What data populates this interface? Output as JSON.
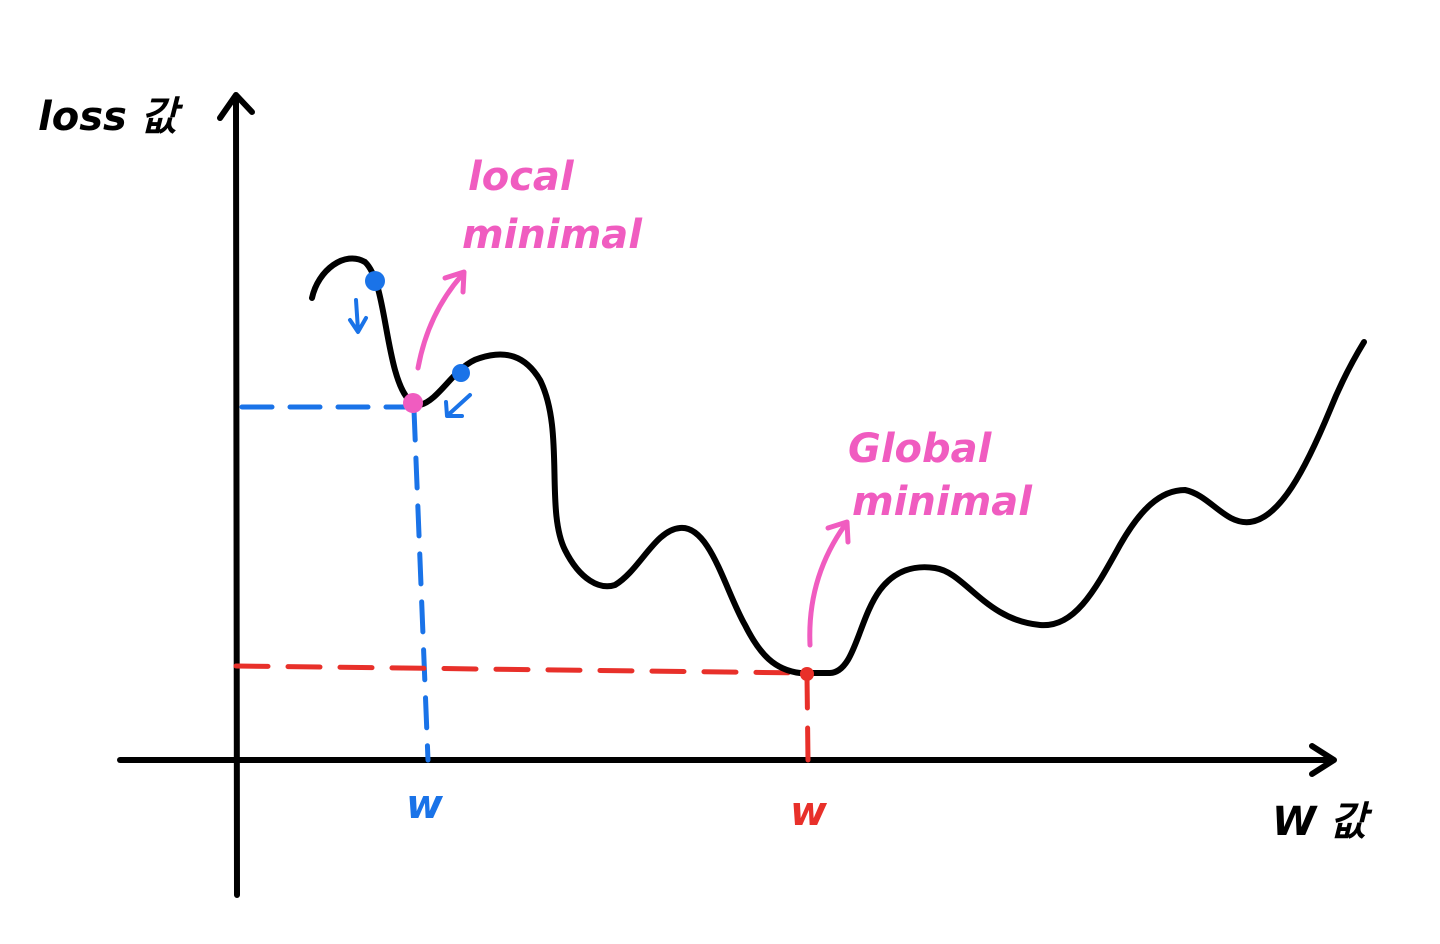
{
  "axes": {
    "y_label": "loss 값",
    "x_label": "W 값"
  },
  "annotations": {
    "local": {
      "line1": "local",
      "line2": "minimal"
    },
    "global": {
      "line1": "Global",
      "line2": "minimal"
    }
  },
  "ticks": {
    "local_w": "w",
    "global_w": "w"
  },
  "colors": {
    "curve": "#000000",
    "local_guides": "#1a73e8",
    "global_guides": "#e8302a",
    "annotation": "#f05cc0",
    "gradient_points": "#1a73e8"
  }
}
